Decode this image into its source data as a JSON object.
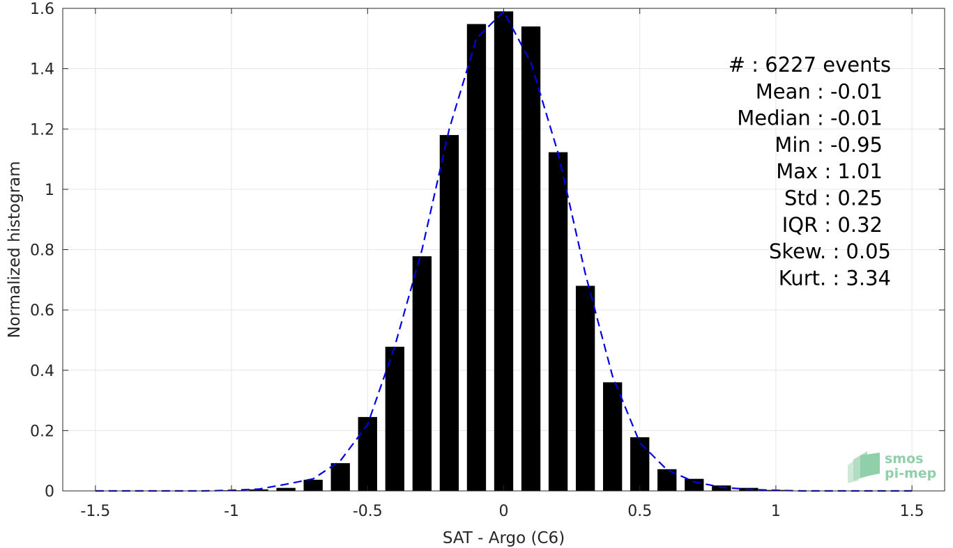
{
  "chart_data": {
    "type": "bar",
    "title": "",
    "xlabel": "SAT - Argo (C6)",
    "ylabel": "Normalized histogram",
    "xlim": [
      -1.62,
      1.62
    ],
    "ylim": [
      0,
      1.6
    ],
    "grid": true,
    "bar_width": 0.07,
    "x_ticks": [
      {
        "value": -1.5,
        "label": "-1.5"
      },
      {
        "value": -1.0,
        "label": "-1"
      },
      {
        "value": -0.5,
        "label": "-0.5"
      },
      {
        "value": 0.0,
        "label": "0"
      },
      {
        "value": 0.5,
        "label": "0.5"
      },
      {
        "value": 1.0,
        "label": "1"
      },
      {
        "value": 1.5,
        "label": "1.5"
      }
    ],
    "y_ticks": [
      {
        "value": 0,
        "label": "0"
      },
      {
        "value": 0.2,
        "label": "0.2"
      },
      {
        "value": 0.4,
        "label": "0.4"
      },
      {
        "value": 0.6,
        "label": "0.6"
      },
      {
        "value": 0.8,
        "label": "0.8"
      },
      {
        "value": 1.0,
        "label": "1"
      },
      {
        "value": 1.2,
        "label": "1.2"
      },
      {
        "value": 1.4,
        "label": "1.4"
      },
      {
        "value": 1.6,
        "label": "1.6"
      }
    ],
    "histogram": {
      "x": [
        -1.0,
        -0.9,
        -0.8,
        -0.7,
        -0.6,
        -0.5,
        -0.4,
        -0.3,
        -0.2,
        -0.1,
        0.0,
        0.1,
        0.2,
        0.3,
        0.4,
        0.5,
        0.6,
        0.7,
        0.8,
        0.9,
        1.0
      ],
      "values": [
        0.002,
        0.005,
        0.01,
        0.037,
        0.092,
        0.245,
        0.478,
        0.778,
        1.18,
        1.548,
        1.59,
        1.54,
        1.123,
        0.68,
        0.36,
        0.178,
        0.072,
        0.04,
        0.018,
        0.01,
        0.003
      ],
      "color": "#000000"
    },
    "fit_curve": {
      "style": "dashed",
      "color": "#0000e6",
      "x": [
        -1.5,
        -1.4,
        -1.3,
        -1.2,
        -1.1,
        -1.0,
        -0.9,
        -0.8,
        -0.7,
        -0.6,
        -0.5,
        -0.4,
        -0.3,
        -0.2,
        -0.1,
        0.0,
        0.1,
        0.2,
        0.3,
        0.4,
        0.5,
        0.6,
        0.7,
        0.8,
        0.9,
        1.0,
        1.1,
        1.2,
        1.3,
        1.4,
        1.5
      ],
      "y": [
        0,
        0,
        0,
        0,
        0,
        0.002,
        0.006,
        0.022,
        0.04,
        0.1,
        0.22,
        0.48,
        0.8,
        1.2,
        1.5,
        1.59,
        1.42,
        1.12,
        0.72,
        0.38,
        0.16,
        0.07,
        0.03,
        0.012,
        0.005,
        0.002,
        0,
        0,
        0,
        0,
        0
      ]
    },
    "stats": [
      {
        "key": "#",
        "text": "#  : 6227 events"
      },
      {
        "key": "mean",
        "text": "Mean : -0.01"
      },
      {
        "key": "median",
        "text": "Median : -0.01"
      },
      {
        "key": "min",
        "text": "Min : -0.95"
      },
      {
        "key": "max",
        "text": "Max : 1.01"
      },
      {
        "key": "std",
        "text": "Std : 0.25"
      },
      {
        "key": "iqr",
        "text": "IQR : 0.32"
      },
      {
        "key": "skew",
        "text": "Skew. : 0.05"
      },
      {
        "key": "kurt",
        "text": "Kurt. : 3.34"
      }
    ],
    "logo": {
      "line1": "smos",
      "line2": "pi-mep",
      "color": "#8fcfa9"
    }
  }
}
